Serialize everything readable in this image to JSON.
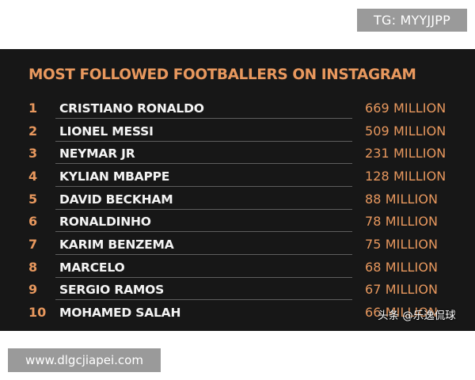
{
  "badge": {
    "text": "TG: MYYJJPP"
  },
  "card": {
    "title": "MOST FOLLOWED FOOTBALLERS ON INSTAGRAM",
    "rows": [
      {
        "rank": "1",
        "name": "CRISTIANO RONALDO",
        "value": "669 MILLION"
      },
      {
        "rank": "2",
        "name": "LIONEL MESSI",
        "value": "509 MILLION"
      },
      {
        "rank": "3",
        "name": "NEYMAR JR",
        "value": "231 MILLION"
      },
      {
        "rank": "4",
        "name": "KYLIAN MBAPPE",
        "value": "128 MILLION"
      },
      {
        "rank": "5",
        "name": "DAVID BECKHAM",
        "value": "88 MILLION"
      },
      {
        "rank": "6",
        "name": "RONALDINHO",
        "value": "78 MILLION"
      },
      {
        "rank": "7",
        "name": "KARIM BENZEMA",
        "value": "75 MILLION"
      },
      {
        "rank": "8",
        "name": "MARCELO",
        "value": "68 MILLION"
      },
      {
        "rank": "9",
        "name": "SERGIO RAMOS",
        "value": "67 MILLION"
      },
      {
        "rank": "10",
        "name": "MOHAMED SALAH",
        "value": "66 MILLION"
      }
    ],
    "watermark": "头条 @乐逸侃球"
  },
  "footer": {
    "url": "www.dlgcjiapei.com"
  },
  "colors": {
    "background": "#ffffff",
    "card_background": "#171717",
    "title": "#e8985e",
    "rank": "#e8985e",
    "name": "#f4f4f4",
    "value": "#e8985e",
    "separator": "#5e5e5e",
    "badge_background": "#9a9a9a"
  }
}
